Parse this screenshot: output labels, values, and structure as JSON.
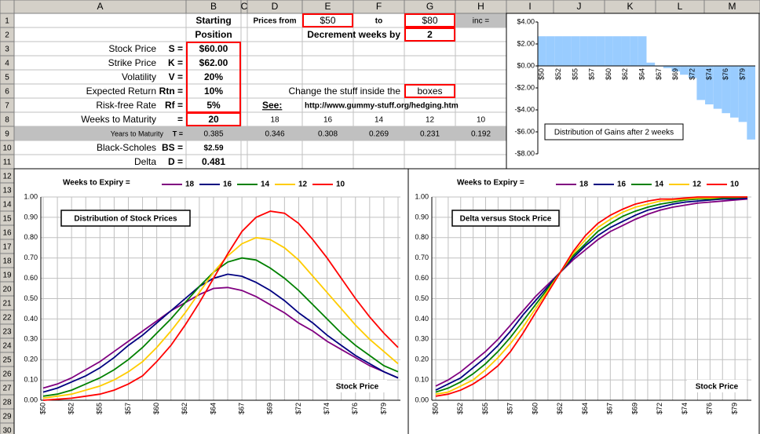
{
  "sheet": {
    "columns": [
      "A",
      "B",
      "C",
      "D",
      "E",
      "F",
      "G",
      "H",
      "I",
      "J",
      "K",
      "L",
      "M"
    ],
    "rows": [
      1,
      2,
      3,
      4,
      5,
      6,
      7,
      8,
      9,
      10,
      11,
      12,
      13,
      14,
      15,
      16,
      17,
      18,
      19,
      20,
      21,
      22,
      23,
      24,
      25,
      26,
      27,
      28,
      29,
      30
    ]
  },
  "position": {
    "header": [
      "Starting",
      "Position"
    ],
    "rows": [
      {
        "label": "Stock Price",
        "symbol": "S =",
        "value": "$60.00"
      },
      {
        "label": "Strike Price",
        "symbol": "K =",
        "value": "$62.00"
      },
      {
        "label": "Volatility",
        "symbol": "V =",
        "value": "20%"
      },
      {
        "label": "Expected Return",
        "symbol": "Rtn =",
        "value": "10%"
      },
      {
        "label": "Risk-free Rate",
        "symbol": "Rf =",
        "value": "5%"
      },
      {
        "label": "Weeks to Maturity",
        "symbol": "=",
        "value": "20"
      },
      {
        "label": "Years to Maturity",
        "symbol": "T =",
        "value": "0.385"
      },
      {
        "label": "Black-Scholes",
        "symbol": "BS =",
        "value": "$2.59"
      },
      {
        "label": "Delta",
        "symbol": "D =",
        "value": "0.481"
      }
    ]
  },
  "prices": {
    "from_label": "Prices from",
    "from": "$50",
    "to_label": "to",
    "to": "$80",
    "inc_label": "inc ="
  },
  "decrement": {
    "label": "Decrement weeks by",
    "value": "2"
  },
  "note": {
    "text": "Change the stuff inside the",
    "boxed": "boxes"
  },
  "link": {
    "label": "See:",
    "url": "http://www.gummy-stuff.org/hedging.htm"
  },
  "weeks": [
    18,
    16,
    14,
    12,
    10
  ],
  "years": [
    0.346,
    0.308,
    0.269,
    0.231,
    0.192
  ],
  "chart_data": [
    {
      "type": "bar",
      "annotation": "Distribution of Gains after 2 weeks",
      "categories": [
        "$50",
        null,
        "$52",
        null,
        "$55",
        null,
        "$57",
        null,
        "$60",
        null,
        "$62",
        null,
        "$64",
        null,
        "$67",
        null,
        "$69",
        null,
        "$72",
        null,
        "$74",
        null,
        "$76",
        null,
        "$79",
        null
      ],
      "values": [
        2.7,
        2.7,
        2.7,
        2.7,
        2.7,
        2.7,
        2.7,
        2.7,
        2.7,
        2.7,
        2.7,
        2.7,
        2.7,
        0.3,
        -0.05,
        -0.2,
        -0.5,
        -0.8,
        -1.1,
        -3.1,
        -3.5,
        -3.9,
        -4.3,
        -4.7,
        -5.1,
        -6.7
      ],
      "color": "#99ccff",
      "ylim": [
        -8,
        4
      ],
      "yticks": [
        {
          "value": 4,
          "label": "$4.00"
        },
        {
          "value": 2,
          "label": "$2.00"
        },
        {
          "value": 0,
          "label": "$0.00"
        },
        {
          "value": -2,
          "label": "-$2.00"
        },
        {
          "value": -4,
          "label": "-$4.00"
        },
        {
          "value": -6,
          "label": "-$6.00"
        },
        {
          "value": -8,
          "label": "-$8.00"
        }
      ]
    },
    {
      "type": "line",
      "title": "Distribution of Stock Prices",
      "x_label": "Stock Price",
      "legend_title": "Weeks to Expiry =",
      "grid": true,
      "categories": [
        "$50",
        null,
        "$52",
        null,
        "$55",
        null,
        "$57",
        null,
        "$60",
        null,
        "$62",
        null,
        "$64",
        null,
        "$67",
        null,
        "$69",
        null,
        "$72",
        null,
        "$74",
        null,
        "$76",
        null,
        "$79",
        null
      ],
      "ylim": [
        0,
        1
      ],
      "yticks": [
        {
          "value": 0,
          "label": "0.00"
        },
        {
          "value": 0.1,
          "label": "0.10"
        },
        {
          "value": 0.2,
          "label": "0.20"
        },
        {
          "value": 0.3,
          "label": "0.30"
        },
        {
          "value": 0.4,
          "label": "0.40"
        },
        {
          "value": 0.5,
          "label": "0.50"
        },
        {
          "value": 0.6,
          "label": "0.60"
        },
        {
          "value": 0.7,
          "label": "0.70"
        },
        {
          "value": 0.8,
          "label": "0.80"
        },
        {
          "value": 0.9,
          "label": "0.90"
        },
        {
          "value": 1,
          "label": "1.00"
        }
      ],
      "series": [
        {
          "name": "18",
          "color": "#800080",
          "values": [
            0.06,
            0.08,
            0.11,
            0.15,
            0.19,
            0.24,
            0.29,
            0.34,
            0.39,
            0.44,
            0.48,
            0.52,
            0.55,
            0.555,
            0.54,
            0.51,
            0.47,
            0.43,
            0.38,
            0.34,
            0.29,
            0.25,
            0.21,
            0.17,
            0.14,
            0.11
          ]
        },
        {
          "name": "16",
          "color": "#000080",
          "values": [
            0.04,
            0.06,
            0.09,
            0.12,
            0.16,
            0.21,
            0.27,
            0.32,
            0.38,
            0.44,
            0.5,
            0.56,
            0.6,
            0.62,
            0.61,
            0.58,
            0.54,
            0.49,
            0.43,
            0.38,
            0.32,
            0.27,
            0.22,
            0.18,
            0.14,
            0.11
          ]
        },
        {
          "name": "14",
          "color": "#008000",
          "values": [
            0.02,
            0.03,
            0.05,
            0.08,
            0.11,
            0.15,
            0.2,
            0.26,
            0.33,
            0.4,
            0.48,
            0.56,
            0.63,
            0.68,
            0.7,
            0.69,
            0.65,
            0.6,
            0.54,
            0.47,
            0.4,
            0.33,
            0.27,
            0.22,
            0.17,
            0.14
          ]
        },
        {
          "name": "12",
          "color": "#ffcc00",
          "values": [
            0.01,
            0.02,
            0.03,
            0.05,
            0.07,
            0.1,
            0.14,
            0.19,
            0.26,
            0.34,
            0.43,
            0.53,
            0.63,
            0.71,
            0.77,
            0.8,
            0.79,
            0.75,
            0.69,
            0.61,
            0.53,
            0.45,
            0.37,
            0.3,
            0.24,
            0.18
          ]
        },
        {
          "name": "10",
          "color": "#ff0000",
          "values": [
            0,
            0.005,
            0.01,
            0.02,
            0.03,
            0.05,
            0.08,
            0.12,
            0.19,
            0.27,
            0.37,
            0.48,
            0.6,
            0.72,
            0.83,
            0.9,
            0.93,
            0.92,
            0.87,
            0.79,
            0.7,
            0.6,
            0.5,
            0.41,
            0.33,
            0.26
          ]
        }
      ]
    },
    {
      "type": "line",
      "title": "Delta versus Stock Price",
      "x_label": "Stock Price",
      "legend_title": "Weeks to Expiry =",
      "grid": true,
      "categories": [
        "$50",
        null,
        "$52",
        null,
        "$55",
        null,
        "$57",
        null,
        "$60",
        null,
        "$62",
        null,
        "$64",
        null,
        "$67",
        null,
        "$69",
        null,
        "$72",
        null,
        "$74",
        null,
        "$76",
        null,
        "$79",
        null
      ],
      "ylim": [
        0,
        1
      ],
      "yticks": [
        {
          "value": 0,
          "label": "0.00"
        },
        {
          "value": 0.1,
          "label": "0.10"
        },
        {
          "value": 0.2,
          "label": "0.20"
        },
        {
          "value": 0.3,
          "label": "0.30"
        },
        {
          "value": 0.4,
          "label": "0.40"
        },
        {
          "value": 0.5,
          "label": "0.50"
        },
        {
          "value": 0.6,
          "label": "0.60"
        },
        {
          "value": 0.7,
          "label": "0.70"
        },
        {
          "value": 0.8,
          "label": "0.80"
        },
        {
          "value": 0.9,
          "label": "0.90"
        },
        {
          "value": 1,
          "label": "1.00"
        }
      ],
      "series": [
        {
          "name": "18",
          "color": "#800080",
          "values": [
            0.07,
            0.1,
            0.14,
            0.19,
            0.24,
            0.3,
            0.37,
            0.44,
            0.51,
            0.57,
            0.63,
            0.69,
            0.74,
            0.79,
            0.83,
            0.86,
            0.89,
            0.915,
            0.935,
            0.95,
            0.96,
            0.97,
            0.975,
            0.98,
            0.985,
            0.99
          ]
        },
        {
          "name": "16",
          "color": "#000080",
          "values": [
            0.05,
            0.08,
            0.11,
            0.16,
            0.21,
            0.27,
            0.34,
            0.42,
            0.49,
            0.56,
            0.63,
            0.7,
            0.76,
            0.81,
            0.85,
            0.88,
            0.91,
            0.935,
            0.95,
            0.965,
            0.975,
            0.98,
            0.985,
            0.99,
            0.99,
            0.995
          ]
        },
        {
          "name": "14",
          "color": "#008000",
          "values": [
            0.04,
            0.06,
            0.09,
            0.13,
            0.18,
            0.24,
            0.31,
            0.39,
            0.47,
            0.55,
            0.63,
            0.71,
            0.77,
            0.83,
            0.87,
            0.905,
            0.93,
            0.95,
            0.965,
            0.975,
            0.985,
            0.99,
            0.99,
            0.995,
            0.995,
            1
          ]
        },
        {
          "name": "12",
          "color": "#ffcc00",
          "values": [
            0.03,
            0.04,
            0.07,
            0.1,
            0.15,
            0.21,
            0.28,
            0.36,
            0.45,
            0.54,
            0.63,
            0.72,
            0.79,
            0.85,
            0.89,
            0.925,
            0.95,
            0.965,
            0.98,
            0.985,
            0.99,
            0.995,
            0.995,
            1,
            1,
            1
          ]
        },
        {
          "name": "10",
          "color": "#ff0000",
          "values": [
            0.02,
            0.03,
            0.05,
            0.08,
            0.12,
            0.17,
            0.24,
            0.33,
            0.43,
            0.53,
            0.63,
            0.73,
            0.81,
            0.87,
            0.91,
            0.94,
            0.965,
            0.98,
            0.99,
            0.99,
            0.995,
            1,
            1,
            1,
            1,
            1
          ]
        }
      ]
    }
  ]
}
